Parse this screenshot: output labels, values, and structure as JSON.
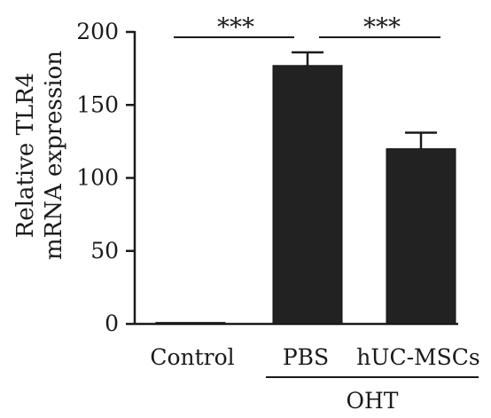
{
  "chart_data": {
    "type": "bar",
    "categories": [
      "Control",
      "PBS",
      "hUC-MSCs"
    ],
    "values": [
      1,
      177,
      120
    ],
    "errors": [
      0,
      9,
      11
    ],
    "ylabel_lines": [
      "Relative TLR4",
      "mRNA expression"
    ],
    "ylim": [
      0,
      200
    ],
    "yticks": [
      "0",
      "50",
      "100",
      "150",
      "200"
    ],
    "grid": false,
    "comparisons": [
      {
        "from": 0,
        "to": 1,
        "label": "***"
      },
      {
        "from": 1,
        "to": 2,
        "label": "***"
      }
    ],
    "group": {
      "label": "OHT",
      "categories": [
        1,
        2
      ]
    },
    "colors": {
      "bar": "#222222",
      "axis": "#1a1a1a"
    }
  }
}
